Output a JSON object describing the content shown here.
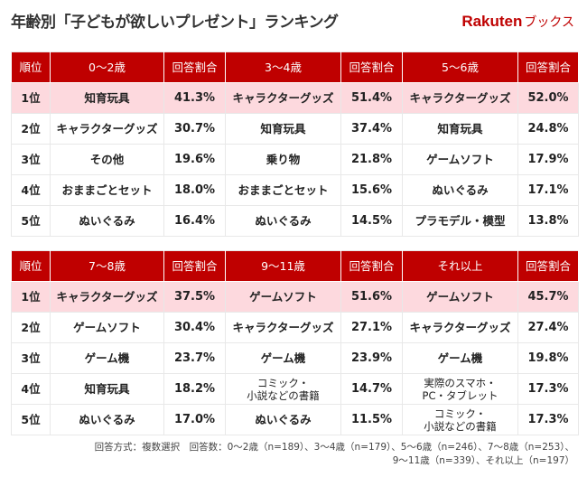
{
  "title": "年齢別「子どもが欲しいプレゼント」ランキング",
  "logo": {
    "text": "Rakuten",
    "sub": "ブックス"
  },
  "colors": {
    "header": "#bf0000",
    "first_row": "#fdd9de"
  },
  "tables": [
    {
      "headers": [
        "順位",
        "0～2歳",
        "回答割合",
        "3～4歳",
        "回答割合",
        "5～6歳",
        "回答割合"
      ],
      "rows": [
        [
          "1位",
          "知育玩具",
          "41.3%",
          "キャラクターグッズ",
          "51.4%",
          "キャラクターグッズ",
          "52.0%"
        ],
        [
          "2位",
          "キャラクターグッズ",
          "30.7%",
          "知育玩具",
          "37.4%",
          "知育玩具",
          "24.8%"
        ],
        [
          "3位",
          "その他",
          "19.6%",
          "乗り物",
          "21.8%",
          "ゲームソフト",
          "17.9%"
        ],
        [
          "4位",
          "おままごとセット",
          "18.0%",
          "おままごとセット",
          "15.6%",
          "ぬいぐるみ",
          "17.1%"
        ],
        [
          "5位",
          "ぬいぐるみ",
          "16.4%",
          "ぬいぐるみ",
          "14.5%",
          "プラモデル・模型",
          "13.8%"
        ]
      ]
    },
    {
      "headers": [
        "順位",
        "7～8歳",
        "回答割合",
        "9～11歳",
        "回答割合",
        "それ以上",
        "回答割合"
      ],
      "rows": [
        [
          "1位",
          "キャラクターグッズ",
          "37.5%",
          "ゲームソフト",
          "51.6%",
          "ゲームソフト",
          "45.7%"
        ],
        [
          "2位",
          "ゲームソフト",
          "30.4%",
          "キャラクターグッズ",
          "27.1%",
          "キャラクターグッズ",
          "27.4%"
        ],
        [
          "3位",
          "ゲーム機",
          "23.7%",
          "ゲーム機",
          "23.9%",
          "ゲーム機",
          "19.8%"
        ],
        [
          "4位",
          "知育玩具",
          "18.2%",
          "コミック・\n小説などの書籍",
          "14.7%",
          "実際のスマホ・\nPC・タブレット",
          "17.3%"
        ],
        [
          "5位",
          "ぬいぐるみ",
          "17.0%",
          "ぬいぐるみ",
          "11.5%",
          "コミック・\n小説などの書籍",
          "17.3%"
        ]
      ]
    }
  ],
  "note": [
    "回答方式：複数選択　回答数：0～2歳（n=189）、3～4歳（n=179）、5～6歳（n=246）、7～8歳（n=253）、",
    "9～11歳（n=339）、それ以上（n=197）"
  ]
}
